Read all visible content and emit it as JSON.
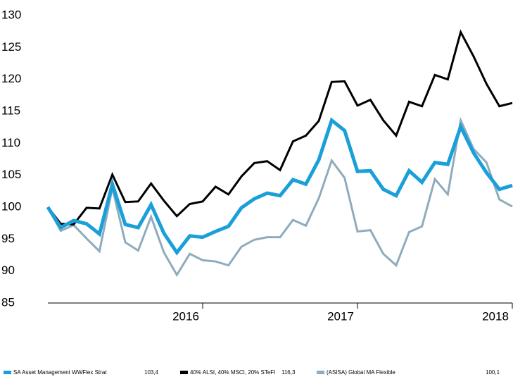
{
  "chart_data": {
    "type": "line",
    "x": [
      0,
      1,
      2,
      3,
      4,
      5,
      6,
      7,
      8,
      9,
      10,
      11,
      12,
      13,
      14,
      15,
      16,
      17,
      18,
      19,
      20,
      21,
      22,
      23,
      24,
      25,
      26,
      27,
      28,
      29,
      30,
      31,
      32,
      33,
      34,
      35,
      36
    ],
    "xlim": [
      0,
      36
    ],
    "xticks": [
      {
        "value": 12,
        "label": "2016"
      },
      {
        "value": 24,
        "label": "2017"
      },
      {
        "value": 36,
        "label": "2018"
      }
    ],
    "ylim": [
      85,
      130
    ],
    "yticks": [
      85,
      90,
      95,
      100,
      105,
      110,
      115,
      120,
      125,
      130
    ],
    "grid": false,
    "series": [
      {
        "name": "(ASISA) Global MA Flexible",
        "color": "#8eacbd",
        "legend_value": "100,1",
        "values": [
          100,
          96.3,
          97.2,
          95.1,
          93.1,
          103,
          94.5,
          93.2,
          98.5,
          92.9,
          89.4,
          92.7,
          91.7,
          91.5,
          90.9,
          93.8,
          94.9,
          95.3,
          95.3,
          98,
          97.1,
          101.4,
          107.3,
          104.6,
          96.2,
          96.4,
          92.7,
          90.9,
          96.1,
          97,
          104.4,
          102,
          113.6,
          109.1,
          107,
          101.2,
          100.1
        ]
      },
      {
        "name": "40% ALSI, 40% MSCI, 20% STeFI",
        "color": "#000000",
        "legend_value": "116,3",
        "values": [
          100,
          97.4,
          97.3,
          99.9,
          99.8,
          105.1,
          100.8,
          100.9,
          103.7,
          101,
          98.6,
          100.5,
          100.9,
          103.2,
          102,
          104.8,
          106.9,
          107.2,
          105.8,
          110.3,
          111.2,
          113.5,
          119.6,
          119.7,
          115.9,
          116.8,
          113.6,
          111.2,
          116.5,
          115.8,
          120.7,
          120,
          127.4,
          123.6,
          119.3,
          115.8,
          116.3
        ]
      },
      {
        "name": "SA Asset Management WWFlex Strat",
        "color": "#1a9fd9",
        "legend_value": "103,4",
        "values": [
          100,
          96.8,
          97.9,
          97.4,
          95.8,
          103.6,
          97.3,
          96.8,
          100.4,
          95.9,
          92.9,
          95.5,
          95.3,
          96.2,
          97,
          99.9,
          101.3,
          102.2,
          101.8,
          104.3,
          103.6,
          107.4,
          113.6,
          112,
          105.6,
          105.7,
          102.8,
          101.8,
          105.7,
          103.9,
          107,
          106.7,
          112.6,
          108.5,
          105.4,
          102.8,
          103.4
        ]
      }
    ]
  }
}
